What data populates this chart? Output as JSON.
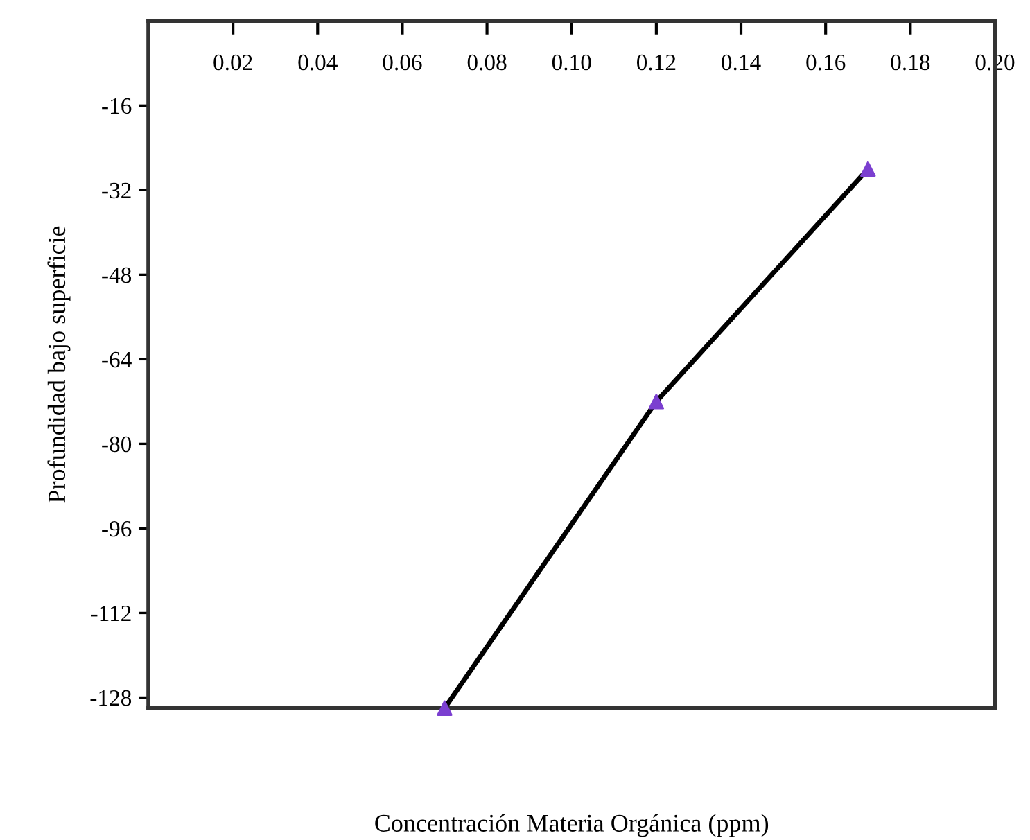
{
  "chart_data": {
    "type": "line",
    "xlabel": "Concentración Materia Orgánica (ppm)",
    "ylabel": "Profundidad bajo superficie",
    "x": [
      0.07,
      0.12,
      0.17
    ],
    "series": [
      {
        "color": "#000000",
        "marker": "none",
        "values": [
          -130,
          -72,
          -28
        ]
      },
      {
        "type": "scatter",
        "color": "#7b3fd0",
        "marker": "triangle",
        "values": [
          -130,
          -72,
          -28
        ]
      }
    ],
    "line_style": "solid",
    "xlim": [
      0,
      0.2
    ],
    "ylim": [
      -130,
      0
    ],
    "xticks": [
      {
        "value": 0.02,
        "label": "0.02"
      },
      {
        "value": 0.04,
        "label": "0.04"
      },
      {
        "value": 0.06,
        "label": "0.06"
      },
      {
        "value": 0.08,
        "label": "0.08"
      },
      {
        "value": 0.1,
        "label": "0.10"
      },
      {
        "value": 0.12,
        "label": "0.12"
      },
      {
        "value": 0.14,
        "label": "0.14"
      },
      {
        "value": 0.16,
        "label": "0.16"
      },
      {
        "value": 0.18,
        "label": "0.18"
      },
      {
        "value": 0.2,
        "label": "0.20"
      }
    ],
    "yticks": [
      -16,
      -32,
      -48,
      -64,
      -80,
      -96,
      -112,
      -128
    ],
    "grid": false,
    "legend": false
  }
}
